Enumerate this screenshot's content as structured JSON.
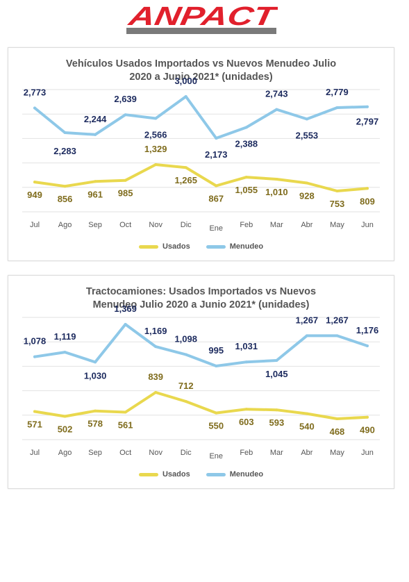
{
  "brand": {
    "name": "ANPACT",
    "color": "#e1202c",
    "bar_color": "#7a7a7a"
  },
  "charts": [
    {
      "title": "Vehículos Usados Importados  vs Nuevos Menudeo Julio\n2020 a Junio 2021* (unidades)"
    },
    {
      "title": "Tractocamiones: Usados Importados  vs Nuevos\nMenudeo  Julio 2020 a Junio 2021* (unidades)"
    }
  ],
  "chart_data": [
    {
      "type": "line",
      "title": "Vehículos Usados Importados  vs Nuevos Menudeo Julio 2020 a Junio 2021* (unidades)",
      "categories": [
        "Jul",
        "Ago",
        "Sep",
        "Oct",
        "Nov",
        "Dic",
        "Ene",
        "Feb",
        "Mar",
        "Abr",
        "May",
        "Jun"
      ],
      "series": [
        {
          "name": "Usados",
          "color": "#e9d84e",
          "label_color": "#7f6c1d",
          "values": [
            949,
            856,
            961,
            985,
            1329,
            1265,
            867,
            1055,
            1010,
            928,
            753,
            809
          ],
          "labels": [
            "949",
            "856",
            "961",
            "985",
            "1,329",
            "1,265",
            "867",
            "1,055",
            "1,010",
            "928",
            "753",
            "809"
          ]
        },
        {
          "name": "Menudeo",
          "color": "#8ec8e8",
          "label_color": "#1c2a5e",
          "values": [
            2773,
            2283,
            2244,
            2639,
            2566,
            3000,
            2173,
            2388,
            2743,
            2553,
            2779,
            2797
          ],
          "labels": [
            "2,773",
            "2,283",
            "2,244",
            "2,639",
            "2,566",
            "3,000",
            "2,173",
            "2,388",
            "2,743",
            "2,553",
            "2,779",
            "2,797"
          ]
        }
      ],
      "grid": true,
      "legend": "bottom"
    },
    {
      "type": "line",
      "title": "Tractocamiones: Usados Importados  vs Nuevos Menudeo  Julio 2020 a Junio 2021* (unidades)",
      "categories": [
        "Jul",
        "Ago",
        "Sep",
        "Oct",
        "Nov",
        "Dic",
        "Ene",
        "Feb",
        "Mar",
        "Abr",
        "May",
        "Jun"
      ],
      "series": [
        {
          "name": "Usados",
          "color": "#e9d84e",
          "label_color": "#7f6c1d",
          "values": [
            571,
            502,
            578,
            561,
            839,
            712,
            550,
            603,
            593,
            540,
            468,
            490
          ],
          "labels": [
            "571",
            "502",
            "578",
            "561",
            "839",
            "712",
            "550",
            "603",
            "593",
            "540",
            "468",
            "490"
          ]
        },
        {
          "name": "Menudeo",
          "color": "#8ec8e8",
          "label_color": "#1c2a5e",
          "values": [
            1078,
            1119,
            1030,
            1369,
            1169,
            1098,
            995,
            1031,
            1045,
            1267,
            1267,
            1176
          ],
          "labels": [
            "1,078",
            "1,119",
            "1,030",
            "1,369",
            "1,169",
            "1,098",
            "995",
            "1,031",
            "1,045",
            "1,267",
            "1,267",
            "1,176"
          ]
        }
      ],
      "grid": true,
      "legend": "bottom"
    }
  ]
}
